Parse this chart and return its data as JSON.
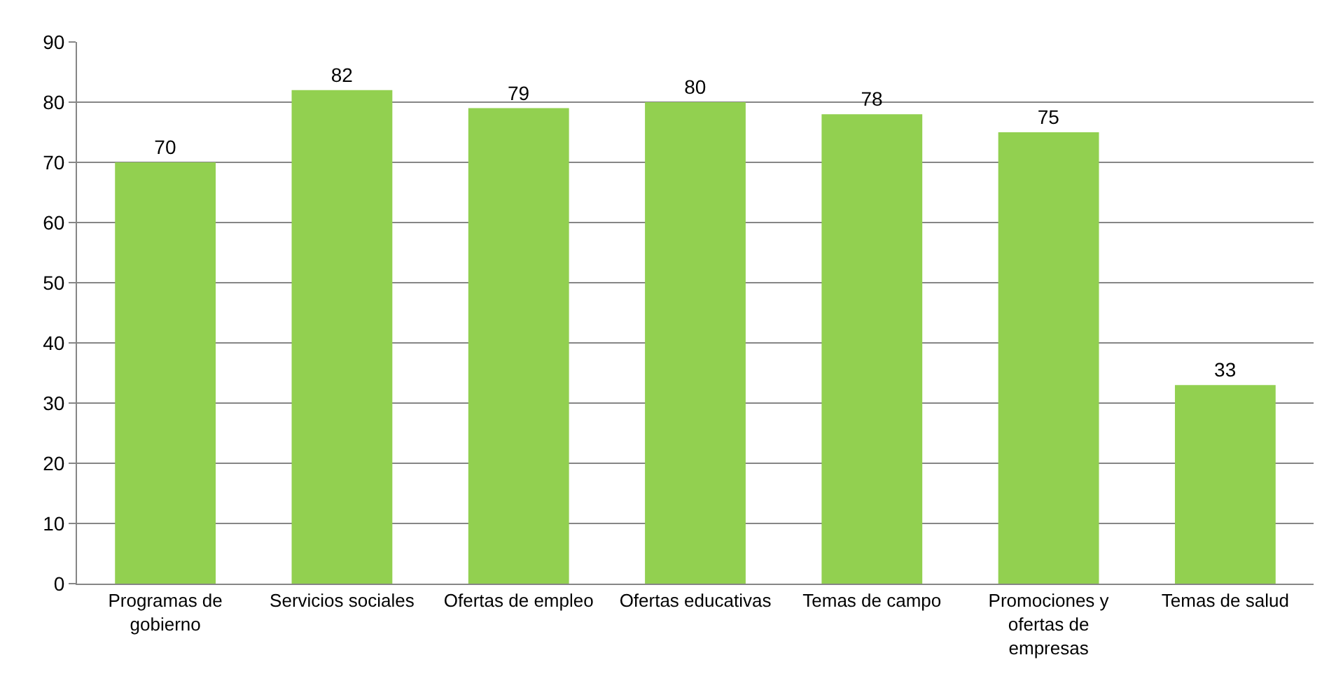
{
  "chart_data": {
    "type": "bar",
    "categories": [
      "Programas de gobierno",
      "Servicios sociales",
      "Ofertas de empleo",
      "Ofertas educativas",
      "Temas de campo",
      "Promociones y ofertas de empresas",
      "Temas de salud"
    ],
    "values": [
      70,
      82,
      79,
      80,
      78,
      75,
      33
    ],
    "color": "#92d050",
    "ylim": [
      0,
      90
    ],
    "yticks": [
      0,
      10,
      20,
      30,
      40,
      50,
      60,
      70,
      80,
      90
    ],
    "grid": "y",
    "data_labels": true
  }
}
